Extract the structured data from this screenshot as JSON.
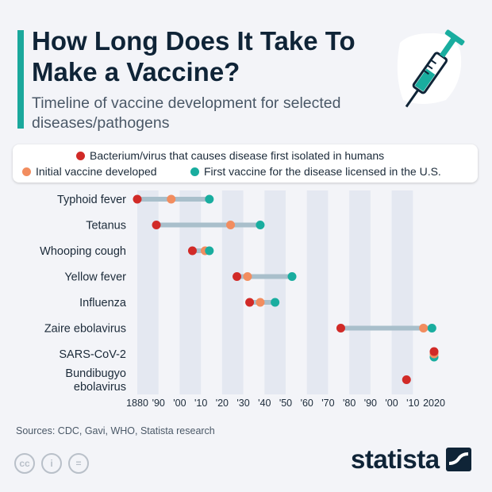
{
  "title": "How Long Does It Take To Make a Vaccine?",
  "subtitle": "Timeline of vaccine development for selected diseases/pathogens",
  "colors": {
    "accent": "#1aa89c",
    "isolated": "#d12a27",
    "initial": "#f28d5f",
    "licensed": "#19ad9f",
    "connector": "#a9bfcb",
    "band": "#e4e8f1"
  },
  "legend": {
    "isolated": "Bacterium/virus that causes disease first isolated in humans",
    "initial": "Initial vaccine developed",
    "licensed": "First vaccine for the disease licensed in the U.S."
  },
  "chart_data": {
    "type": "scatter",
    "xlim": [
      1880,
      2020
    ],
    "x_tick_labels": [
      "1880",
      "'90",
      "'00",
      "'10",
      "'20",
      "'30",
      "'40",
      "'50",
      "'60",
      "'70",
      "'80",
      "'90",
      "'00",
      "'10",
      "2020"
    ],
    "series": [
      {
        "key": "isolated",
        "name": "Bacterium/virus that causes disease first isolated in humans"
      },
      {
        "key": "initial",
        "name": "Initial vaccine developed"
      },
      {
        "key": "licensed",
        "name": "First vaccine for the disease licensed in the U.S."
      }
    ],
    "rows": [
      {
        "label": [
          "Typhoid fever"
        ],
        "isolated": 1880,
        "initial": 1896,
        "licensed": 1914
      },
      {
        "label": [
          "Tetanus"
        ],
        "isolated": 1889,
        "initial": 1924,
        "licensed": 1938
      },
      {
        "label": [
          "Whooping cough"
        ],
        "isolated": 1906,
        "initial": 1912,
        "licensed": 1914
      },
      {
        "label": [
          "Yellow fever"
        ],
        "isolated": 1927,
        "initial": 1932,
        "licensed": 1953
      },
      {
        "label": [
          "Influenza"
        ],
        "isolated": 1933,
        "initial": 1938,
        "licensed": 1945
      },
      {
        "label": [
          "Zaire ebolavirus"
        ],
        "isolated": 1976,
        "initial": 2015,
        "licensed": 2019
      },
      {
        "label": [
          "SARS-CoV-2"
        ],
        "isolated": 2020,
        "initial": 2020,
        "licensed": 2020
      },
      {
        "label": [
          "Bundibugyo",
          "ebolavirus"
        ],
        "isolated": 2007,
        "initial": null,
        "licensed": null
      }
    ]
  },
  "sources": "Sources: CDC, Gavi, WHO, Statista research",
  "footer": {
    "cc_icons": [
      "cc-icon",
      "attribution-icon",
      "no-derivatives-icon"
    ],
    "cc_glyphs": [
      "cc",
      "i",
      "="
    ],
    "logo_text": "statista"
  }
}
